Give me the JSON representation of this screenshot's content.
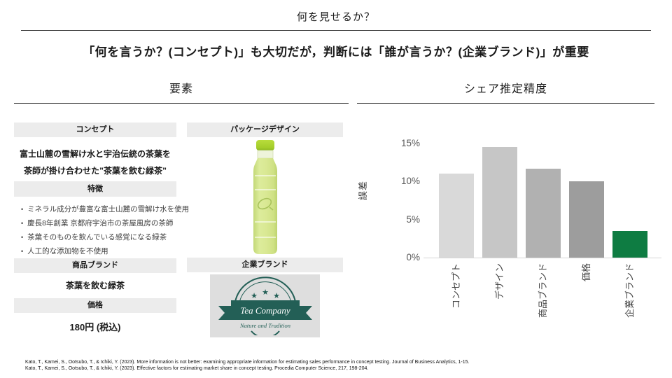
{
  "page": {
    "title": "何を見せるか？",
    "subtitle": "「何を言うか？(コンセプト)」も大切だが，判断には「誰が言うか？(企業ブランド)」が重要"
  },
  "left_section": {
    "heading": "要素",
    "table": {
      "concept_header": "コンセプト",
      "concept_line1": "富士山麓の雪解け水と宇治伝統の茶葉を",
      "concept_line2": "茶師が掛け合わせた”茶葉を飲む緑茶”",
      "features_header": "特徴",
      "features": [
        "ミネラル成分が豊富な富士山麓の雪解け水を使用",
        "慶長8年創業 京都府宇治市の茶屋風房の茶師",
        "茶葉そのものを飲んでいる感覚になる緑茶",
        "人工的な添加物を不使用"
      ],
      "product_brand_header": "商品ブランド",
      "product_brand_value": "茶葉を飲む緑茶",
      "price_header": "価格",
      "price_value": "180円 (税込)"
    },
    "package": {
      "design_header": "パッケージデザイン",
      "corporate_header": "企業ブランド",
      "logo_name": "Tea Company",
      "logo_tagline": "Nature and Tradition",
      "logo_color": "#235f56",
      "bottle_cap_color": "#a5ce2b",
      "bottle_body_color": "#d9e893"
    }
  },
  "right_section": {
    "heading": "シェア推定精度"
  },
  "chart_data": {
    "type": "bar",
    "categories": [
      "コンセプト",
      "デザイン",
      "商品ブランド",
      "価格",
      "企業ブランド"
    ],
    "values": [
      11,
      14.5,
      11.7,
      10,
      3.5
    ],
    "title": "シェア推定精度",
    "xlabel": "",
    "ylabel": "誤差",
    "ylim": [
      0,
      16.5
    ],
    "yticks": [
      15,
      10,
      5,
      0
    ],
    "ytick_labels": [
      "15%",
      "10%",
      "5%",
      "0%"
    ],
    "bar_colors": [
      "#d9d9d9",
      "#c6c6c6",
      "#b1b1b1",
      "#9d9d9d",
      "#0e7c42"
    ],
    "grid": false,
    "legend_position": "none"
  },
  "footer": {
    "citations": [
      "Kato, T., Kamei, S., Ootsubo, T., & Ichiki, Y. (2023). More information is not better: examining appropriate information for estimating sales performance in concept testing. Journal of Business Analytics, 1-15.",
      "Kato, T., Kamei, S., Ootsubo, T., & Ichiki, Y. (2023). Effective factors for estimating market share in concept testing. Procedia Computer Science, 217, 198-204."
    ]
  }
}
